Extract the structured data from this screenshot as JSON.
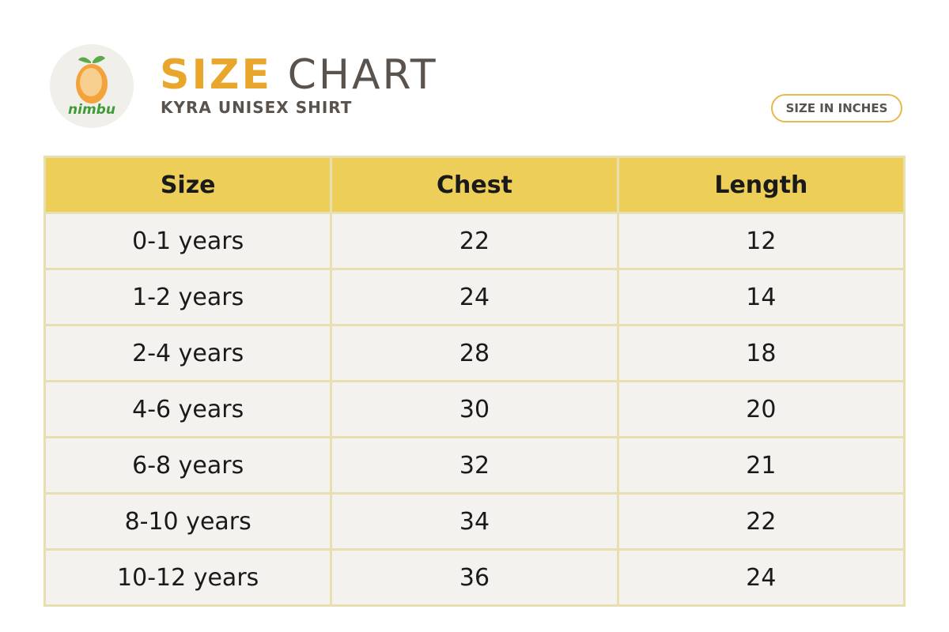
{
  "logo": {
    "text": "nimbu"
  },
  "header": {
    "title_accent": "SIZE",
    "title_rest": "CHART",
    "subtitle": "KYRA UNISEX SHIRT",
    "badge": "SIZE IN INCHES"
  },
  "table": {
    "columns": [
      "Size",
      "Chest",
      "Length"
    ],
    "rows": [
      [
        "0-1 years",
        22,
        12
      ],
      [
        "1-2 years",
        24,
        14
      ],
      [
        "2-4 years",
        28,
        18
      ],
      [
        "4-6 years",
        30,
        20
      ],
      [
        "6-8 years",
        32,
        21
      ],
      [
        "8-10 years",
        34,
        22
      ],
      [
        "10-12 years",
        36,
        24
      ]
    ]
  }
}
